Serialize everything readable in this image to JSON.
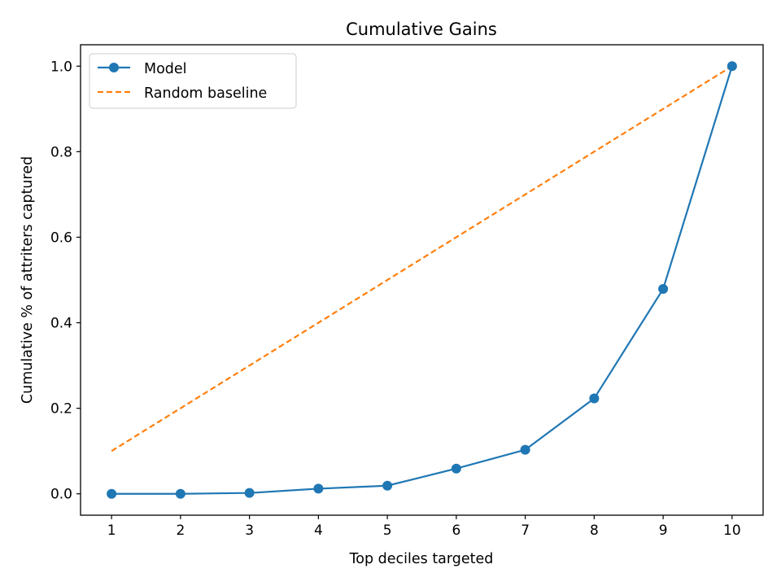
{
  "chart_data": {
    "type": "line",
    "title": "Cumulative Gains",
    "xlabel": "Top deciles targeted",
    "ylabel": "Cumulative % of attriters captured",
    "xlim": [
      0.55,
      10.45
    ],
    "ylim": [
      -0.05,
      1.05
    ],
    "x_ticks": [
      1,
      2,
      3,
      4,
      5,
      6,
      7,
      8,
      9,
      10
    ],
    "y_ticks": [
      0.0,
      0.2,
      0.4,
      0.6,
      0.8,
      1.0
    ],
    "y_tick_labels": [
      "0.0",
      "0.2",
      "0.4",
      "0.6",
      "0.8",
      "1.0"
    ],
    "grid": false,
    "legend_position": "top-left",
    "series": [
      {
        "name": "Model",
        "style": "solid-with-markers",
        "color": "#1f77b4",
        "x": [
          1,
          2,
          3,
          4,
          5,
          6,
          7,
          8,
          9,
          10
        ],
        "y": [
          0.0,
          0.0,
          0.002,
          0.012,
          0.019,
          0.059,
          0.103,
          0.223,
          0.479,
          1.0
        ]
      },
      {
        "name": "Random baseline",
        "style": "dashed",
        "color": "#ff7f0e",
        "x": [
          1,
          2,
          3,
          4,
          5,
          6,
          7,
          8,
          9,
          10
        ],
        "y": [
          0.1,
          0.2,
          0.3,
          0.4,
          0.5,
          0.6,
          0.7,
          0.8,
          0.9,
          1.0
        ]
      }
    ]
  }
}
